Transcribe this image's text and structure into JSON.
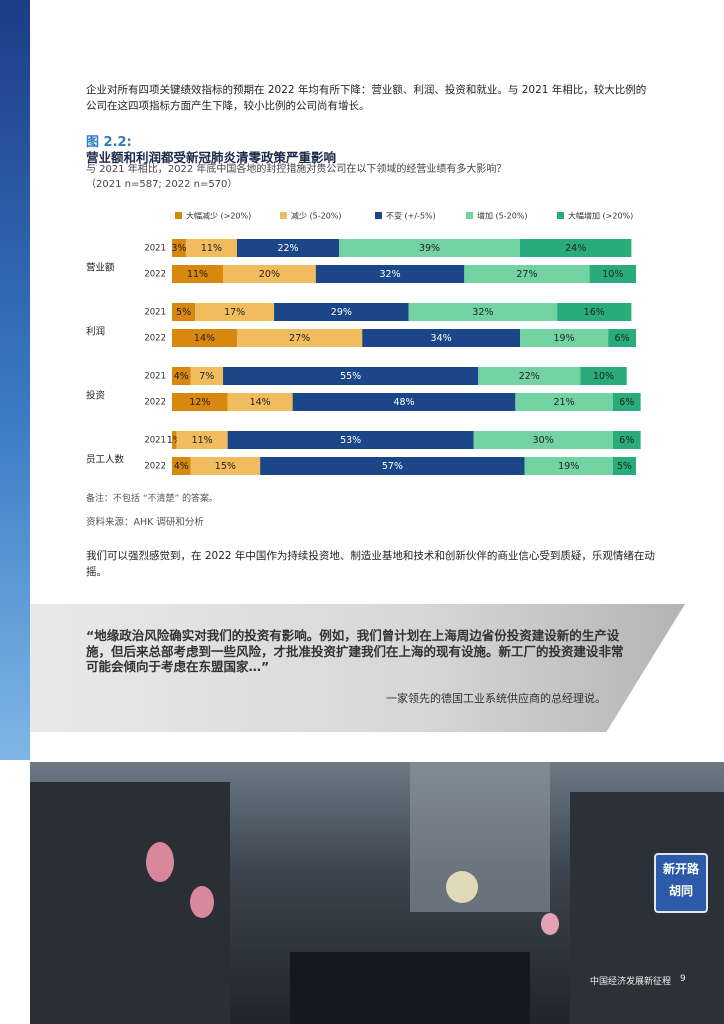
{
  "intro": "企业对所有四项关键绩效指标的预期在 2022 年均有所下降：营业额、利润、投资和就业。与 2021 年相比，较大比例的公司在这四项指标方面产生下降，较小比例的公司尚有增长。",
  "figure_label": "图 2.2:",
  "chart_data": {
    "type": "bar",
    "stacked": true,
    "title": "营业额和利润都受新冠肺炎清零政策严重影响",
    "subtitle": "与 2021 年相比，2022 年底中国各地的封控措施对贵公司在以下领域的经营业绩有多大影响？",
    "sample": "（2021 n=587; 2022 n=570）",
    "groups": [
      "营业额",
      "利润",
      "投资",
      "员工人数"
    ],
    "categories": [
      "2021",
      "2022",
      "2021",
      "2022",
      "2021",
      "2022",
      "2021",
      "2022"
    ],
    "xlim": [
      0,
      100
    ],
    "series": [
      {
        "name": "大幅减少 (>20%)",
        "color": "#d8870f",
        "values": [
          3,
          11,
          5,
          14,
          4,
          12,
          1,
          4
        ],
        "value_labels": [
          "3%",
          "11%",
          "5%",
          "14%",
          "4%",
          "12%",
          "1%",
          "4%"
        ]
      },
      {
        "name": "减少 (5-20%)",
        "color": "#f0bc5e",
        "values": [
          11,
          20,
          17,
          27,
          7,
          14,
          11,
          15
        ],
        "value_labels": [
          "11%",
          "20%",
          "17%",
          "27%",
          "7%",
          "14%",
          "11%",
          "15%"
        ]
      },
      {
        "name": "不变 (+/-5%)",
        "color": "#1b4788",
        "values": [
          22,
          32,
          29,
          34,
          55,
          48,
          53,
          57
        ],
        "value_labels": [
          "22%",
          "32%",
          "29%",
          "34%",
          "55%",
          "48%",
          "53%",
          "57%"
        ]
      },
      {
        "name": "增加 (5-20%)",
        "color": "#72d2a2",
        "values": [
          39,
          27,
          32,
          19,
          22,
          21,
          30,
          19
        ],
        "value_labels": [
          "39%",
          "27%",
          "32%",
          "19%",
          "22%",
          "21%",
          "30%",
          "19%"
        ]
      },
      {
        "name": "大幅增加 (>20%)",
        "color": "#2aab7c",
        "values": [
          24,
          10,
          16,
          6,
          10,
          6,
          6,
          5
        ],
        "value_labels": [
          "24%",
          "10%",
          "16%",
          "6%",
          "10%",
          "6%",
          "6%",
          "5%"
        ]
      }
    ]
  },
  "note": "备注：不包括 “不清楚” 的答案。",
  "source": "资料来源：AHK 调研和分析",
  "paragraph": "我们可以强烈感觉到，在 2022 年中国作为持续投资地、制造业基地和技术和创新伙伴的商业信心受到质疑，乐观情绪在动摇。",
  "quote": {
    "text": "“地缘政治风险确实对我们的投资有影响。例如，我们曾计划在上海周边省份投资建设新的生产设施，但后来总部考虑到一些风险，才批准投资扩建我们在上海的现有设施。新工厂的投资建设非常可能会倾向于考虑在东盟国家…”",
    "attribution": "一家领先的德国工业系统供应商的总经理说。"
  },
  "photo_sign": "新开路 胡同",
  "footer": {
    "title": "中国经济发展新征程",
    "page": "9"
  }
}
